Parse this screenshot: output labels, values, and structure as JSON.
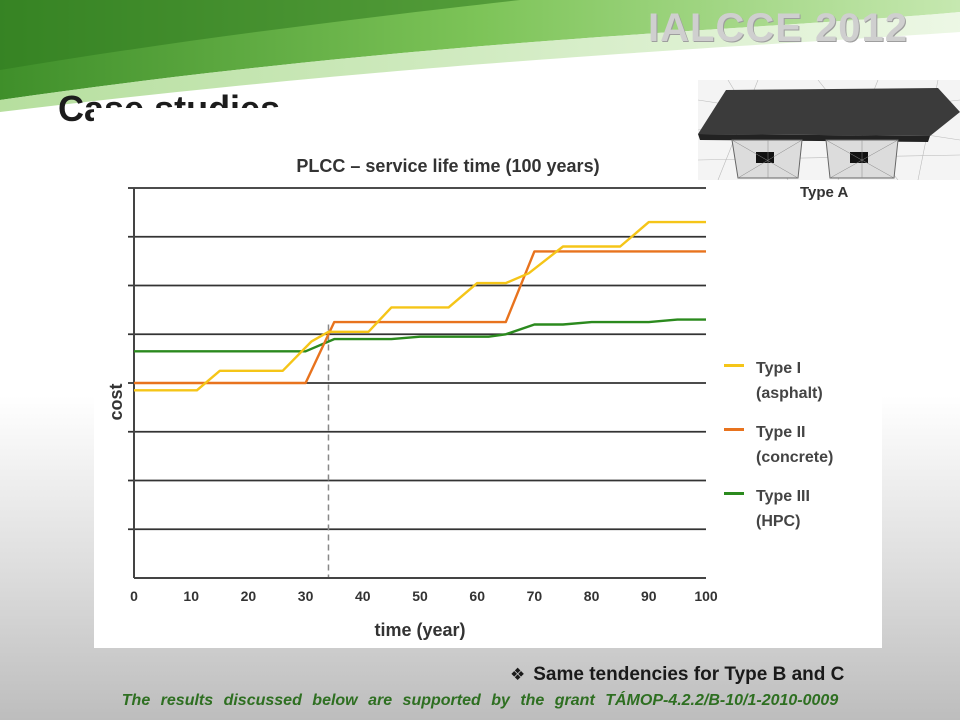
{
  "header": {
    "conference_title": "IALCCE 2012",
    "slide_title": "Case studies"
  },
  "illustration": {
    "label": "Type A",
    "icon": "bridge-cross-section-icon"
  },
  "chart_data": {
    "type": "line",
    "title": "PLCC – service life time (100 years)",
    "xlabel": "time (year)",
    "ylabel": "cost",
    "xlim": [
      0,
      100
    ],
    "ylim": [
      0,
      8
    ],
    "xticks": [
      "0",
      "10",
      "20",
      "30",
      "40",
      "50",
      "60",
      "70",
      "80",
      "90",
      "100"
    ],
    "y_gridlines": [
      1,
      2,
      3,
      4,
      5,
      6,
      7,
      8
    ],
    "grid": true,
    "legend_position": "right",
    "reference_line_x": 34,
    "series": [
      {
        "name": "Type I\n(asphalt)",
        "color": "#f5c518",
        "points": [
          [
            0,
            3.85
          ],
          [
            11,
            3.85
          ],
          [
            15,
            4.25
          ],
          [
            26,
            4.25
          ],
          [
            31,
            4.85
          ],
          [
            34,
            5.05
          ],
          [
            41,
            5.05
          ],
          [
            45,
            5.55
          ],
          [
            55,
            5.55
          ],
          [
            60,
            6.05
          ],
          [
            65,
            6.05
          ],
          [
            69,
            6.25
          ],
          [
            75,
            6.8
          ],
          [
            85,
            6.8
          ],
          [
            90,
            7.3
          ],
          [
            100,
            7.3
          ]
        ]
      },
      {
        "name": "Type II\n(concrete)",
        "color": "#e8731e",
        "points": [
          [
            0,
            4.0
          ],
          [
            30,
            4.0
          ],
          [
            35,
            5.25
          ],
          [
            65,
            5.25
          ],
          [
            70,
            6.7
          ],
          [
            100,
            6.7
          ]
        ]
      },
      {
        "name": "Type III\n(HPC)",
        "color": "#2b8a1e",
        "points": [
          [
            0,
            4.65
          ],
          [
            30,
            4.65
          ],
          [
            35,
            4.9
          ],
          [
            45,
            4.9
          ],
          [
            50,
            4.95
          ],
          [
            62,
            4.95
          ],
          [
            65,
            5.0
          ],
          [
            70,
            5.2
          ],
          [
            75,
            5.2
          ],
          [
            80,
            5.25
          ],
          [
            90,
            5.25
          ],
          [
            95,
            5.3
          ],
          [
            100,
            5.3
          ]
        ]
      }
    ]
  },
  "notes": {
    "tendency_bullet": "❖",
    "tendency": "Same tendencies for Type B and C",
    "grant": "The results discussed below are supported by the grant TÁMOP-4.2.2/B-10/1-2010-0009"
  }
}
